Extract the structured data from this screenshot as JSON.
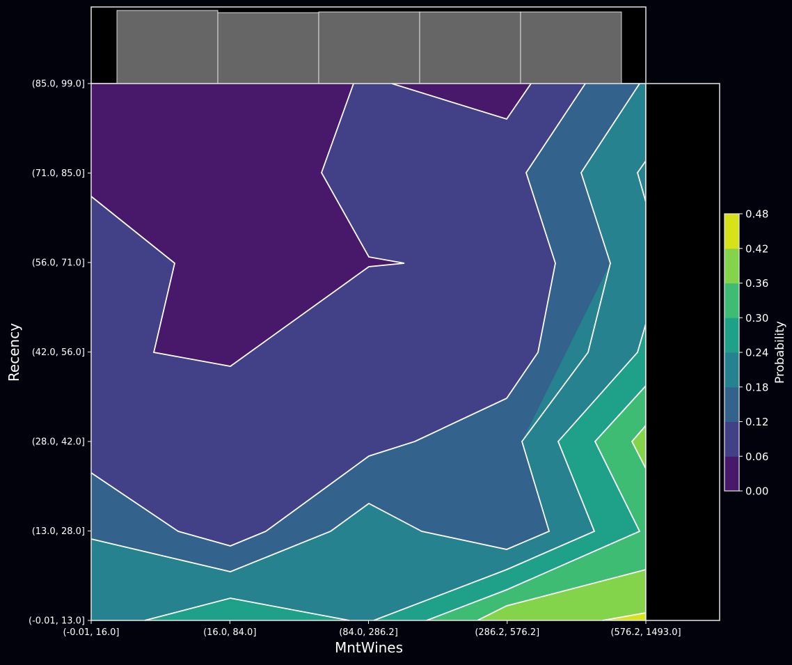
{
  "chart_data": {
    "type": "contour",
    "xlabel": "MntWines",
    "ylabel": "Recency",
    "colorbar_label": "Probability",
    "x_categories": [
      "(-0.01, 16.0]",
      "(16.0, 84.0]",
      "(84.0, 286.2]",
      "(286.2, 576.2]",
      "(576.2, 1493.0]"
    ],
    "y_categories": [
      "(-0.01, 13.0]",
      "(13.0, 28.0]",
      "(28.0, 42.0]",
      "(42.0, 56.0]",
      "(56.0, 71.0]",
      "(71.0, 85.0]",
      "(85.0, 99.0]"
    ],
    "colorbar_ticks": [
      "0.00",
      "0.06",
      "0.12",
      "0.18",
      "0.24",
      "0.30",
      "0.36",
      "0.42",
      "0.48"
    ],
    "levels": [
      0.0,
      0.06,
      0.12,
      0.18,
      0.24,
      0.3,
      0.36,
      0.42,
      0.48
    ],
    "colormap": [
      "#48186a",
      "#424086",
      "#33638d",
      "#26828e",
      "#1fa088",
      "#3fbc73",
      "#84d44b",
      "#d8e219"
    ],
    "marginal_histogram_top": {
      "color": "#666666",
      "relative_heights": [
        1.0,
        0.97,
        0.98,
        0.98,
        0.98
      ]
    },
    "probability_grid_approx": {
      "rows_bottom_to_top": [
        [
          0.24,
          0.26,
          0.22,
          0.35,
          0.48
        ],
        [
          0.17,
          0.13,
          0.19,
          0.17,
          0.35
        ],
        [
          0.1,
          0.09,
          0.11,
          0.15,
          0.33
        ],
        [
          0.08,
          0.05,
          0.08,
          0.14,
          0.26
        ],
        [
          0.06,
          0.04,
          0.06,
          0.13,
          0.22
        ],
        [
          0.04,
          0.04,
          0.07,
          0.13,
          0.2
        ],
        [
          0.04,
          0.05,
          0.07,
          0.05,
          0.19
        ]
      ]
    }
  }
}
